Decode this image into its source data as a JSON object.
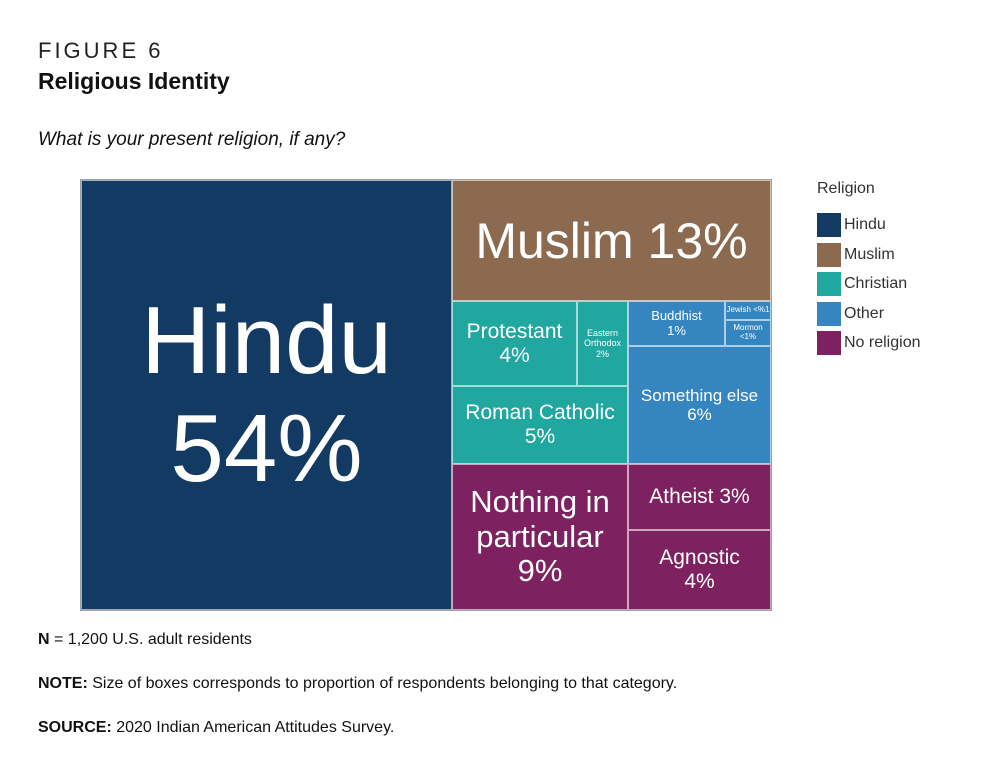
{
  "figure": {
    "label": "FIGURE 6",
    "title": "Religious Identity",
    "question": "What is your present religion, if any?"
  },
  "legend": {
    "title": "Religion",
    "items": [
      {
        "label": "Hindu",
        "color": "#123a62"
      },
      {
        "label": "Muslim",
        "color": "#8b6a4f"
      },
      {
        "label": "Christian",
        "color": "#1fa7a0"
      },
      {
        "label": "Other",
        "color": "#3585c1"
      },
      {
        "label": "No religion",
        "color": "#7e2160"
      }
    ]
  },
  "chart_data": {
    "type": "treemap",
    "groups": [
      {
        "name": "Hindu",
        "color": "#123a62",
        "value": 54
      },
      {
        "name": "Muslim",
        "color": "#8b6a4f",
        "value": 13
      },
      {
        "name": "Christian",
        "color": "#1fa7a0",
        "value": 11
      },
      {
        "name": "Other",
        "color": "#3585c1",
        "value": 7
      },
      {
        "name": "No religion",
        "color": "#7e2160",
        "value": 16
      }
    ],
    "tiles": [
      {
        "label": "Hindu",
        "value_label": "54%",
        "value": 54,
        "group": "Hindu"
      },
      {
        "label": "Muslim",
        "value_label": "13%",
        "value": 13,
        "group": "Muslim"
      },
      {
        "label": "Protestant",
        "value_label": "4%",
        "value": 4,
        "group": "Christian"
      },
      {
        "label": "Eastern Orthodox",
        "value_label": "2%",
        "value": 2,
        "group": "Christian"
      },
      {
        "label": "Roman Catholic",
        "value_label": "5%",
        "value": 5,
        "group": "Christian"
      },
      {
        "label": "Buddhist",
        "value_label": "1%",
        "value": 1,
        "group": "Other"
      },
      {
        "label": "Jewish",
        "value_label": "<%1",
        "value": 0.5,
        "group": "Other"
      },
      {
        "label": "Mormon",
        "value_label": "<1%",
        "value": 0.5,
        "group": "Other"
      },
      {
        "label": "Something else",
        "value_label": "6%",
        "value": 6,
        "group": "Other"
      },
      {
        "label": "Nothing in particular",
        "value_label": "9%",
        "value": 9,
        "group": "No religion"
      },
      {
        "label": "Atheist",
        "value_label": "3%",
        "value": 3,
        "group": "No religion"
      },
      {
        "label": "Agnostic",
        "value_label": "4%",
        "value": 4,
        "group": "No religion"
      }
    ]
  },
  "notes": {
    "n_label": "N",
    "n_text": " = 1,200 U.S. adult residents",
    "note_label": "NOTE:",
    "note_text": " Size of boxes corresponds to proportion of respondents belonging to that category.",
    "source_label": "SOURCE:",
    "source_text": " 2020 Indian American Attitudes Survey."
  }
}
